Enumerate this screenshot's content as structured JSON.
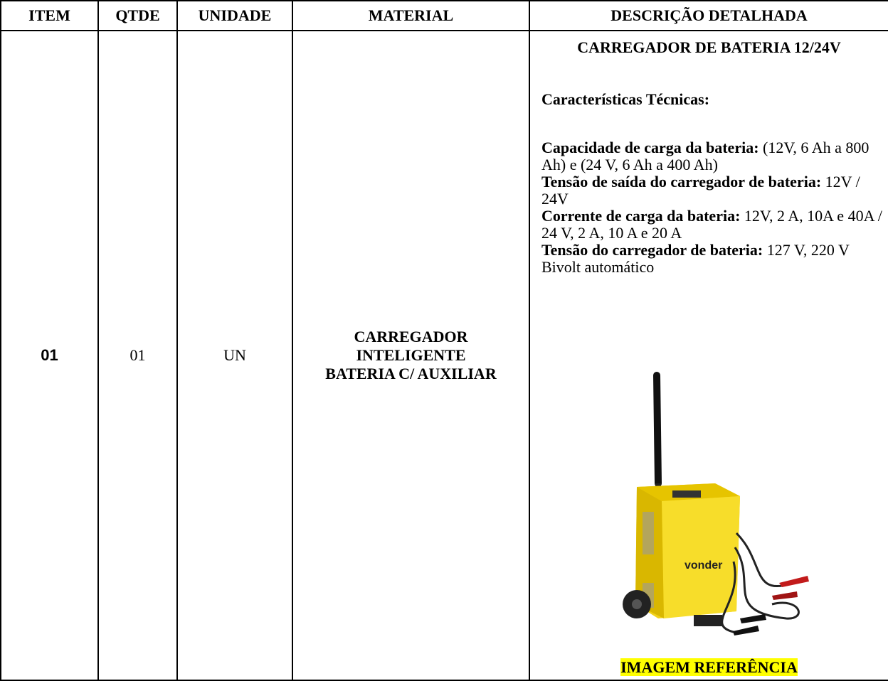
{
  "table": {
    "headers": [
      "ITEM",
      "QTDE",
      "UNIDADE",
      "MATERIAL",
      "DESCRIÇÃO DETALHADA"
    ],
    "rows": [
      {
        "item": "01",
        "qtde": "01",
        "unidade": "UN",
        "material": "CARREGADOR INTELIGENTE BATERIA C/ AUXILIAR",
        "description": {
          "title": "CARREGADOR DE BATERIA 12/24V",
          "subtitle": "Características Técnicas:",
          "specs": [
            {
              "label": "Capacidade de carga da bateria:",
              "value": "(12V, 6 Ah a 800 Ah) e (24 V, 6 Ah a 400 Ah)"
            },
            {
              "label": "Tensão de saída do carregador de bateria:",
              "value": "12V / 24V"
            },
            {
              "label": "Corrente de carga da bateria:",
              "value": "12V, 2 A, 10A e 40A / 24 V, 2 A, 10 A e 20 A"
            },
            {
              "label": "Tensão do carregador de bateria:",
              "value": "127 V, 220 V Bivolt automático"
            }
          ],
          "image_brand": "vonder",
          "caption": "IMAGEM REFERÊNCIA"
        }
      }
    ]
  }
}
